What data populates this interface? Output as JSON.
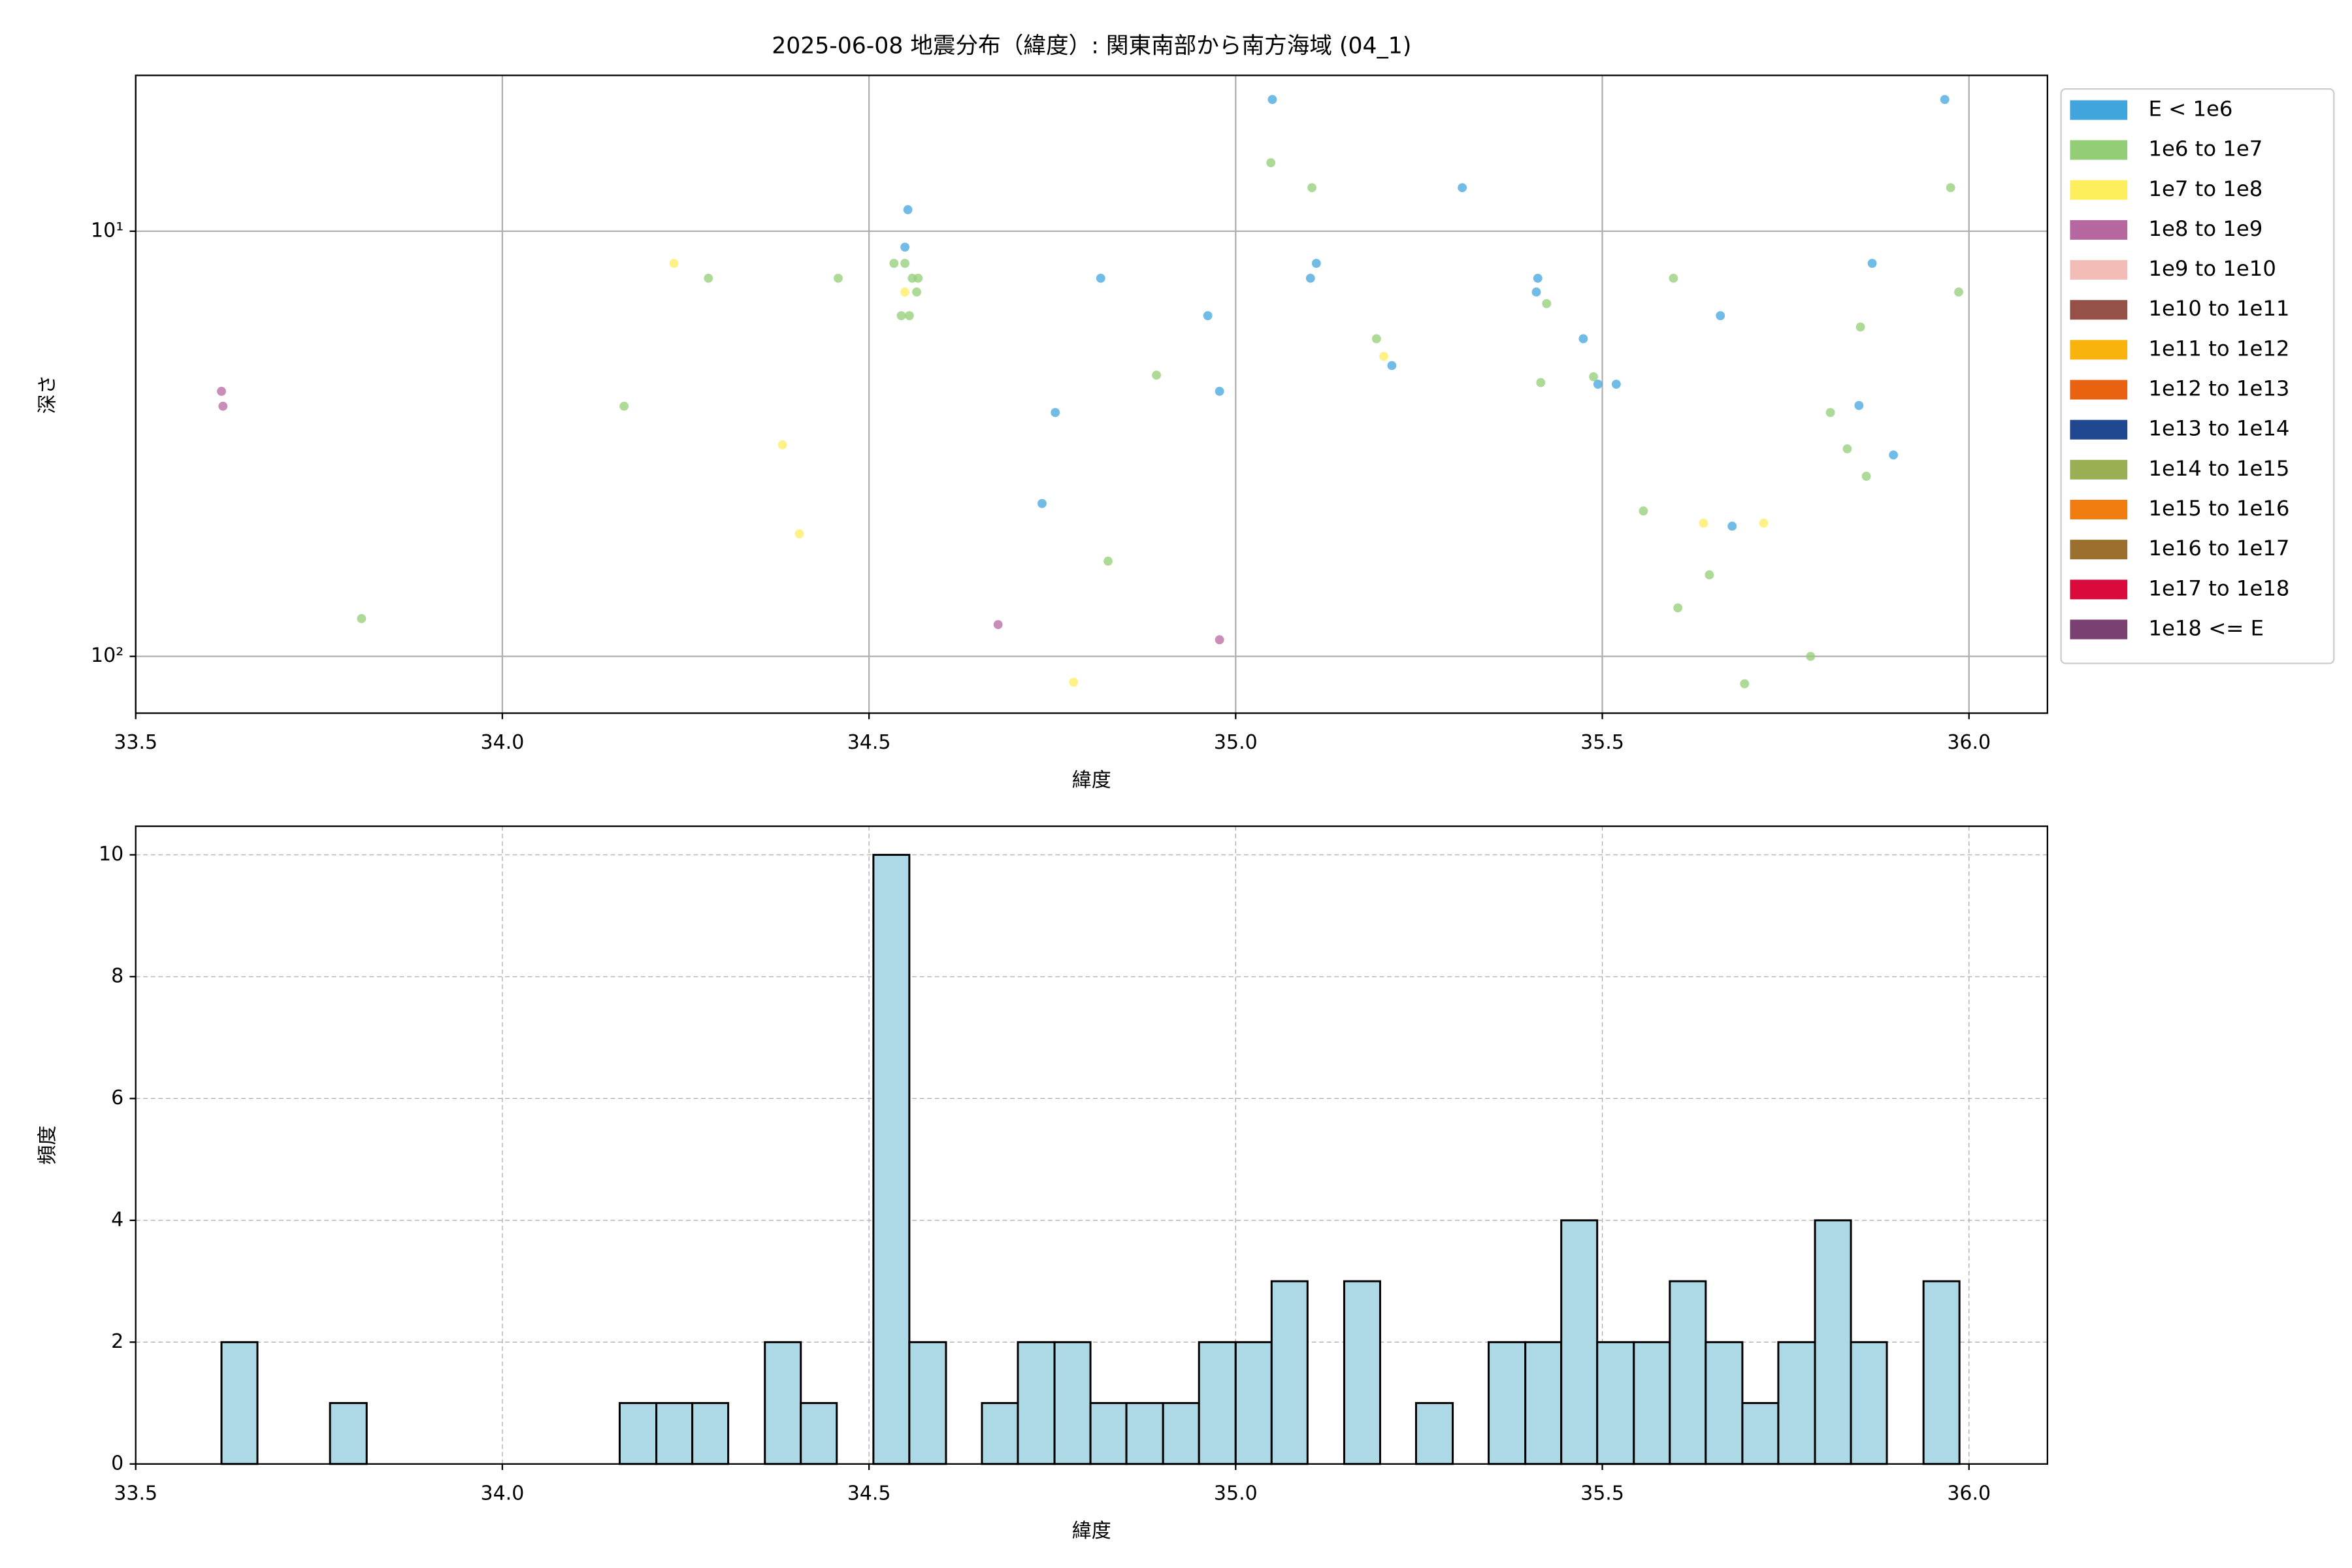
{
  "chart_data": [
    {
      "type": "scatter",
      "title": "2025-06-08 地震分布（緯度）: 関東南部から南方海域 (04_1)",
      "x_label": "緯度",
      "y_label": "深さ",
      "xlim": [
        33.5,
        36.107
      ],
      "xticks": [
        33.5,
        {
          "value": 34,
          "label": "34.0"
        },
        34.5,
        {
          "value": 35,
          "label": "35.0"
        },
        35.5,
        {
          "value": 36,
          "label": "36.0"
        }
      ],
      "ylim": [
        136,
        4.3
      ],
      "ylog": true,
      "yticks": [
        {
          "value": 10,
          "label": "10¹"
        },
        {
          "value": 100,
          "label": "10²"
        }
      ],
      "grid": true,
      "grid_style": "solid",
      "legend": "outside right",
      "series": [
        {
          "name": "E < 1e6",
          "color": "#41a5dd",
          "x": [
            35.05,
            35.967,
            34.553,
            34.549,
            35.309,
            34.816,
            35.102,
            35.11,
            35.412,
            35.41,
            35.661,
            34.962,
            35.474,
            35.213,
            34.978,
            35.494,
            35.519,
            34.754,
            35.85,
            35.897,
            34.736,
            35.677,
            35.868
          ],
          "values": [
            4.9,
            4.9,
            8.9,
            10.9,
            7.9,
            12.9,
            12.9,
            11.9,
            12.9,
            13.9,
            15.8,
            15.8,
            17.9,
            20.7,
            23.8,
            22.9,
            22.9,
            26.7,
            25.7,
            33.6,
            43.7,
            49.4,
            11.9
          ]
        },
        {
          "name": "1e6 to 1e7",
          "color": "#93ce76",
          "x": [
            35.048,
            35.104,
            35.975,
            34.534,
            34.549,
            34.281,
            34.458,
            34.559,
            34.567,
            34.565,
            34.544,
            34.555,
            35.986,
            35.597,
            35.424,
            35.852,
            35.192,
            34.892,
            35.488,
            35.416,
            34.166,
            35.811,
            35.834,
            35.86,
            35.556,
            34.826,
            35.646,
            35.603,
            33.808,
            35.784,
            35.694
          ],
          "values": [
            6.9,
            7.9,
            7.9,
            11.9,
            11.9,
            12.9,
            12.9,
            12.9,
            12.9,
            13.9,
            15.8,
            15.8,
            13.9,
            12.9,
            14.8,
            16.8,
            17.9,
            21.8,
            22.0,
            22.7,
            25.8,
            26.7,
            32.5,
            37.7,
            45.5,
            59.7,
            64.3,
            76.9,
            81.5,
            100,
            116
          ]
        },
        {
          "name": "1e7 to 1e8",
          "color": "#fdee5e",
          "x": [
            34.234,
            34.549,
            35.202,
            34.382,
            34.405,
            35.638,
            35.72,
            34.779
          ],
          "values": [
            11.9,
            13.9,
            19.7,
            31.8,
            51.5,
            48.6,
            48.6,
            115
          ]
        },
        {
          "name": "1e8 to 1e9",
          "color": "#b7679f",
          "x": [
            33.617,
            33.619,
            34.676,
            34.978
          ],
          "values": [
            23.8,
            25.8,
            84.2,
            91.4
          ]
        },
        {
          "name": "1e9 to 1e10",
          "color": "#f4bcb6",
          "x": [],
          "values": []
        },
        {
          "name": "1e10 to 1e11",
          "color": "#955048",
          "x": [],
          "values": []
        },
        {
          "name": "1e11 to 1e12",
          "color": "#f9b30d",
          "x": [],
          "values": []
        },
        {
          "name": "1e12 to 1e13",
          "color": "#e8620f",
          "x": [],
          "values": []
        },
        {
          "name": "1e13 to 1e14",
          "color": "#1f4891",
          "x": [],
          "values": []
        },
        {
          "name": "1e14 to 1e15",
          "color": "#9aaf53",
          "x": [],
          "values": []
        },
        {
          "name": "1e15 to 1e16",
          "color": "#f17d10",
          "x": [],
          "values": []
        },
        {
          "name": "1e16 to 1e17",
          "color": "#9b6f2e",
          "x": [],
          "values": []
        },
        {
          "name": "1e17 to 1e18",
          "color": "#da0a3d",
          "x": [],
          "values": []
        },
        {
          "name": "1e18 <= E",
          "color": "#7b4072",
          "x": [],
          "values": []
        }
      ]
    },
    {
      "type": "histogram",
      "x_label": "緯度",
      "y_label": "頻度",
      "xlim": [
        33.5,
        36.107
      ],
      "xticks": [
        33.5,
        {
          "value": 34,
          "label": "34.0"
        },
        34.5,
        {
          "value": 35,
          "label": "35.0"
        },
        35.5,
        {
          "value": 36,
          "label": "36.0"
        }
      ],
      "ylim": [
        0,
        10.47
      ],
      "yticks": [
        0,
        2,
        4,
        6,
        8,
        10
      ],
      "grid": true,
      "grid_style": "dashed",
      "color": "#add8e6",
      "edgecolor": "#000000",
      "bins": [
        33.617,
        33.666,
        33.716,
        33.765,
        33.815,
        33.864,
        33.913,
        33.963,
        34.012,
        34.061,
        34.111,
        34.16,
        34.21,
        34.259,
        34.308,
        34.358,
        34.407,
        34.456,
        34.506,
        34.555,
        34.605,
        34.654,
        34.703,
        34.753,
        34.802,
        34.851,
        34.901,
        34.95,
        35.0,
        35.049,
        35.098,
        35.148,
        35.197,
        35.246,
        35.296,
        35.345,
        35.395,
        35.444,
        35.493,
        35.543,
        35.592,
        35.641,
        35.691,
        35.74,
        35.79,
        35.839,
        35.888,
        35.938,
        35.987
      ],
      "values": [
        2,
        0,
        0,
        1,
        0,
        0,
        0,
        0,
        0,
        0,
        0,
        1,
        1,
        1,
        0,
        2,
        1,
        0,
        10,
        2,
        0,
        1,
        2,
        2,
        1,
        1,
        1,
        2,
        2,
        3,
        0,
        3,
        0,
        1,
        0,
        2,
        2,
        4,
        2,
        2,
        3,
        2,
        1,
        2,
        4,
        2,
        0,
        3
      ]
    }
  ]
}
